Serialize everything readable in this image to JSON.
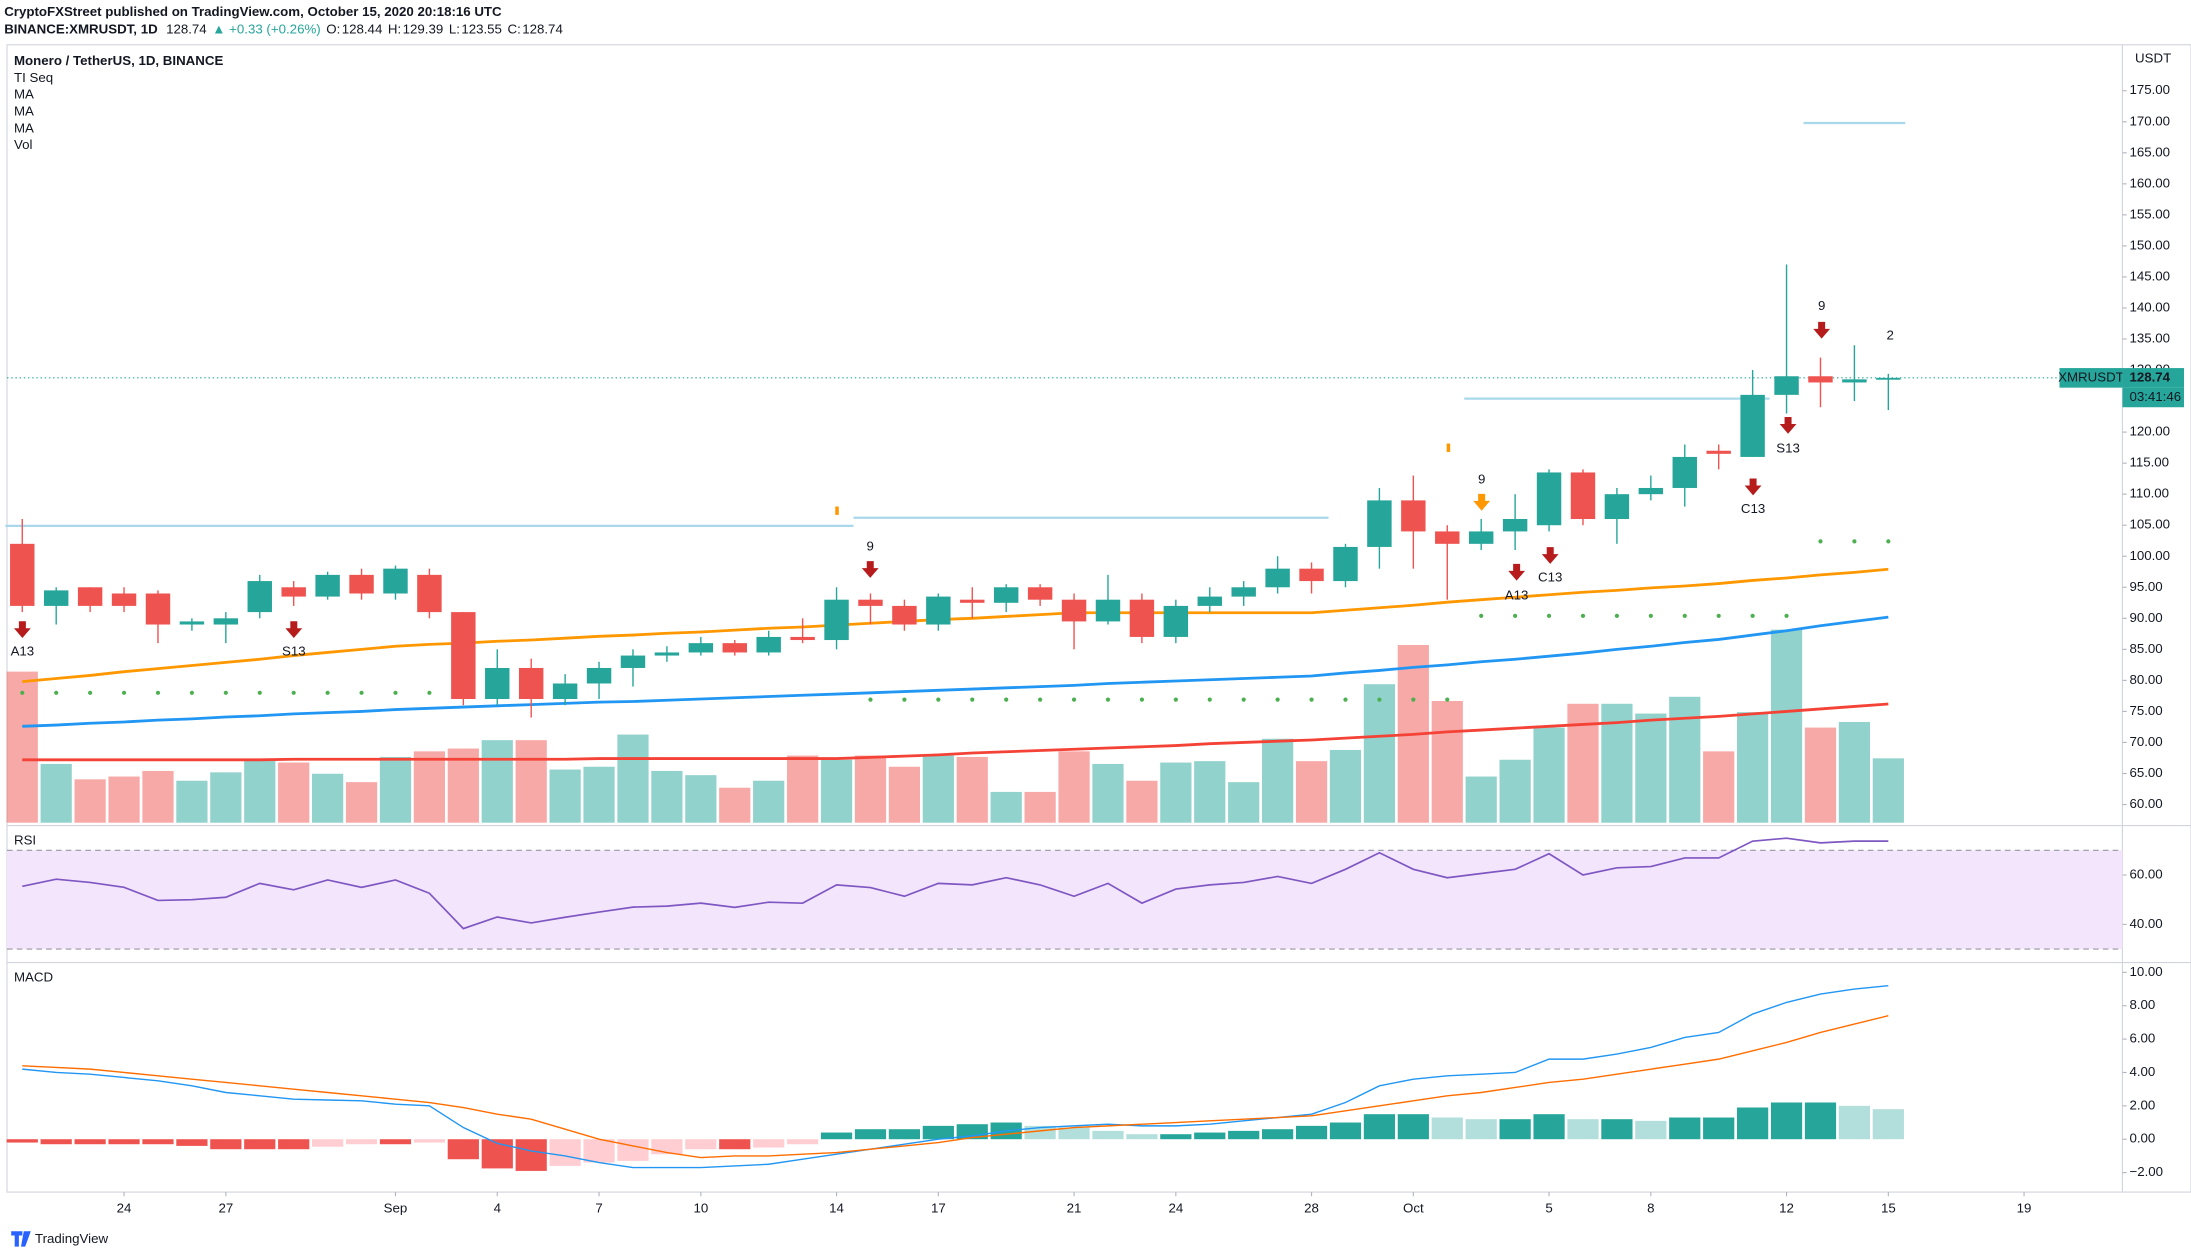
{
  "header": {
    "publisher": "CryptoFXStreet published on TradingView.com, October 15, 2020 20:18:16 UTC",
    "symbol": "BINANCE:XMRUSDT, 1D",
    "change": "▲ +0.33 (+0.26%)",
    "ohlc_labels": [
      "O:",
      "H:",
      "L:",
      "C:"
    ]
  },
  "footer": "TradingView",
  "chart_data": [
    {
      "type": "candlestick",
      "title": "Monero / TetherUS, 1D, BINANCE",
      "indicator": "TI Seq",
      "volume_name": "Vol",
      "currency": "USDT",
      "last_symbol": "XMRUSDT",
      "countdown": "03:41:46",
      "up_color": "#26a69a",
      "down_color": "#ef5350",
      "grid": false,
      "open": [
        102,
        92,
        95,
        94,
        94,
        89,
        89,
        91,
        95,
        93.5,
        97,
        94,
        97,
        91,
        77,
        82,
        77,
        79.5,
        82,
        84,
        84.5,
        86,
        84.5,
        87,
        86.5,
        93,
        92,
        89,
        93,
        92.5,
        95,
        93,
        89.5,
        93,
        87,
        92,
        93.5,
        95,
        98,
        96,
        101.5,
        109,
        104,
        102,
        104,
        105,
        113.5,
        106,
        110,
        111,
        117,
        116,
        126,
        129,
        128,
        128.44
      ],
      "high": [
        106,
        95,
        95,
        95,
        94.5,
        90,
        91,
        97,
        96,
        97.5,
        98,
        98.5,
        98,
        91,
        85,
        83.5,
        81,
        83,
        85,
        85.5,
        87,
        86.5,
        88,
        90,
        95,
        94,
        93,
        94,
        95,
        95.5,
        95.5,
        94,
        97,
        94,
        93,
        95,
        96,
        100,
        99,
        102,
        111,
        113,
        105,
        106,
        110,
        114,
        114,
        111,
        113,
        118,
        118,
        130,
        147,
        132,
        134,
        129.39
      ],
      "low": [
        91,
        89,
        91,
        91,
        86,
        88,
        86,
        90,
        92,
        93,
        93,
        93,
        90,
        76,
        76,
        74,
        76,
        77,
        79,
        83,
        84,
        84,
        84,
        86,
        85,
        89,
        88,
        88,
        90,
        91,
        92,
        85,
        89,
        86,
        86,
        91,
        92,
        94,
        94,
        95,
        98,
        98,
        93,
        101,
        101,
        104,
        105,
        102,
        109,
        108,
        114,
        116,
        123,
        124,
        125,
        123.55
      ],
      "close": [
        92,
        94.5,
        92,
        92,
        89,
        89.5,
        90,
        96,
        93.5,
        97,
        94,
        98,
        91,
        77,
        82,
        77,
        79.5,
        82,
        84,
        84.5,
        86,
        84.5,
        87,
        86.5,
        93,
        92,
        89,
        93.5,
        92.5,
        95,
        93,
        89.5,
        93,
        87,
        92,
        93.5,
        95,
        98,
        96,
        101.5,
        109,
        104,
        102,
        104,
        106,
        113.5,
        106,
        110,
        111,
        116,
        116.5,
        126,
        129,
        128,
        128.5,
        128.74
      ],
      "volume": [
        108,
        42,
        31,
        33,
        37,
        30,
        36,
        45,
        43,
        35,
        29,
        47,
        51,
        53,
        59,
        59,
        38,
        40,
        63,
        37,
        34,
        25,
        30,
        48,
        45,
        48,
        40,
        48,
        47,
        22,
        22,
        51,
        42,
        30,
        43,
        44,
        29,
        60,
        44,
        52,
        99,
        127,
        87,
        33,
        45,
        68,
        85,
        85,
        78,
        90,
        51,
        79,
        138,
        68,
        72,
        46
      ],
      "series": [
        {
          "name": "MA",
          "color": "#ff9800",
          "values": [
            79.8,
            80.3,
            80.8,
            81.4,
            81.9,
            82.4,
            82.9,
            83.4,
            84.0,
            84.5,
            85.0,
            85.5,
            85.8,
            86.0,
            86.3,
            86.5,
            86.8,
            87.1,
            87.3,
            87.6,
            87.8,
            88.1,
            88.4,
            88.6,
            88.9,
            89.2,
            89.5,
            89.8,
            90.0,
            90.3,
            90.6,
            90.9,
            90.9,
            90.9,
            90.9,
            90.9,
            90.9,
            90.9,
            90.9,
            91.3,
            91.7,
            92.1,
            92.6,
            93.0,
            93.4,
            93.8,
            94.2,
            94.5,
            94.9,
            95.2,
            95.6,
            96.1,
            96.5,
            97.0,
            97.4,
            97.9
          ]
        },
        {
          "name": "MA",
          "color": "#2196f3",
          "values": [
            72.6,
            72.8,
            73.1,
            73.3,
            73.6,
            73.8,
            74.1,
            74.3,
            74.6,
            74.8,
            75.0,
            75.3,
            75.5,
            75.7,
            75.9,
            76.1,
            76.3,
            76.5,
            76.6,
            76.8,
            77.0,
            77.2,
            77.4,
            77.6,
            77.8,
            78.0,
            78.2,
            78.4,
            78.6,
            78.8,
            79.0,
            79.2,
            79.5,
            79.7,
            79.9,
            80.1,
            80.3,
            80.5,
            80.7,
            81.2,
            81.6,
            82.1,
            82.5,
            83.0,
            83.4,
            83.9,
            84.4,
            85.0,
            85.5,
            86.1,
            86.6,
            87.3,
            88.0,
            88.8,
            89.5,
            90.2
          ]
        },
        {
          "name": "MA",
          "color": "#f44336",
          "values": [
            67.2,
            67.2,
            67.2,
            67.2,
            67.2,
            67.2,
            67.2,
            67.2,
            67.3,
            67.3,
            67.3,
            67.3,
            67.3,
            67.3,
            67.3,
            67.3,
            67.3,
            67.4,
            67.4,
            67.4,
            67.4,
            67.4,
            67.4,
            67.4,
            67.4,
            67.6,
            67.8,
            68.0,
            68.3,
            68.5,
            68.7,
            68.9,
            69.1,
            69.3,
            69.5,
            69.8,
            70.0,
            70.2,
            70.4,
            70.7,
            71.0,
            71.3,
            71.7,
            72.0,
            72.3,
            72.6,
            72.9,
            73.2,
            73.6,
            73.9,
            74.2,
            74.6,
            75.0,
            75.4,
            75.8,
            76.2
          ]
        }
      ],
      "levels": [
        {
          "value": 104.9,
          "from": 0,
          "to": 24,
          "style": "solid",
          "color": "#a8d8ea"
        },
        {
          "value": 106.2,
          "from": 25,
          "to": 38,
          "style": "solid",
          "color": "#a8d8ea"
        },
        {
          "value": 125.4,
          "from": 43,
          "to": 51,
          "style": "solid",
          "color": "#a8d8ea"
        },
        {
          "value": 169.8,
          "from": 53,
          "to": 55,
          "style": "solid",
          "color": "#a8d8ea"
        },
        {
          "value": 78.0,
          "from": 0,
          "to": 12,
          "style": "dots",
          "color": "#4caf50"
        },
        {
          "value": 76.9,
          "from": 25,
          "to": 42,
          "style": "dots",
          "color": "#4caf50"
        },
        {
          "value": 90.4,
          "from": 43,
          "to": 52,
          "style": "dots",
          "color": "#4caf50"
        },
        {
          "value": 102.4,
          "from": 53,
          "to": 55,
          "style": "dots",
          "color": "#4caf50"
        }
      ],
      "signals": [
        {
          "text": "A13",
          "color": "#2196f3"
        },
        {
          "text": "S13",
          "color": "#ff9800"
        },
        {
          "text": "9",
          "color": "#4caf50"
        },
        {
          "text": "9",
          "color": "#4caf50"
        },
        {
          "text": "A13",
          "color": "#2196f3"
        },
        {
          "text": "C13",
          "color": "#e040fb"
        },
        {
          "text": "C13",
          "color": "#e040fb"
        },
        {
          "text": "S13",
          "color": "#ff9800"
        },
        {
          "text": "9",
          "color": "#4caf50"
        },
        {
          "text": "2",
          "color": "#22c55e",
          "size": "large"
        }
      ],
      "xlim": [
        -0.45,
        61.9
      ],
      "xticks": [
        {
          "value": 3,
          "label": "24"
        },
        {
          "value": 6,
          "label": "27"
        },
        {
          "value": 11,
          "label": "Sep"
        },
        {
          "value": 14,
          "label": "4"
        },
        {
          "value": 17,
          "label": "7"
        },
        {
          "value": 20,
          "label": "10"
        },
        {
          "value": 24,
          "label": "14"
        },
        {
          "value": 27,
          "label": "17"
        },
        {
          "value": 31,
          "label": "21"
        },
        {
          "value": 34,
          "label": "24"
        },
        {
          "value": 38,
          "label": "28"
        },
        {
          "value": 41,
          "label": "Oct"
        },
        {
          "value": 45,
          "label": "5"
        },
        {
          "value": 48,
          "label": "8"
        },
        {
          "value": 52,
          "label": "12"
        },
        {
          "value": 55,
          "label": "15"
        },
        {
          "value": 59,
          "label": "19"
        }
      ],
      "ylim": [
        57.07,
        182.4
      ],
      "yticks": [
        {
          "value": 60,
          "label": "60.00"
        },
        {
          "value": 65,
          "label": "65.00"
        },
        {
          "value": 70,
          "label": "70.00"
        },
        {
          "value": 75,
          "label": "75.00"
        },
        {
          "value": 80,
          "label": "80.00"
        },
        {
          "value": 85,
          "label": "85.00"
        },
        {
          "value": 90,
          "label": "90.00"
        },
        {
          "value": 95,
          "label": "95.00"
        },
        {
          "value": 100,
          "label": "100.00"
        },
        {
          "value": 105,
          "label": "105.00"
        },
        {
          "value": 110,
          "label": "110.00"
        },
        {
          "value": 115,
          "label": "115.00"
        },
        {
          "value": 120,
          "label": "120.00"
        },
        {
          "value": 125,
          "label": "125.00"
        },
        {
          "value": 130,
          "label": "130.00"
        },
        {
          "value": 135,
          "label": "135.00"
        },
        {
          "value": 140,
          "label": "140.00"
        },
        {
          "value": 145,
          "label": "145.00"
        },
        {
          "value": 150,
          "label": "150.00"
        },
        {
          "value": 155,
          "label": "155.00"
        },
        {
          "value": 160,
          "label": "160.00"
        },
        {
          "value": 165,
          "label": "165.00"
        },
        {
          "value": 170,
          "label": "170.00"
        },
        {
          "value": 175,
          "label": "175.00"
        }
      ]
    },
    {
      "type": "line",
      "title": "RSI",
      "color": "#7e57c2",
      "band": [
        30,
        70
      ],
      "band_color": "#f3e5fc",
      "values": [
        55.4,
        58.3,
        57,
        55,
        49.7,
        50,
        51,
        56.6,
        54,
        58,
        55,
        58,
        52.6,
        38.3,
        43,
        40.6,
        42.9,
        45,
        47,
        47.4,
        48.6,
        46.9,
        49,
        48.6,
        56,
        54.9,
        51.4,
        56.6,
        56,
        58.9,
        56,
        51.4,
        56.6,
        48.6,
        54.3,
        56,
        57,
        59.4,
        56.6,
        62.3,
        69,
        62.3,
        58.9,
        60.6,
        62.3,
        68.6,
        60,
        62.9,
        63.4,
        66.9,
        66.9,
        73.7,
        74.9,
        73,
        73.7,
        73.7
      ],
      "ylim": [
        25.1,
        78.9
      ],
      "yticks": [
        {
          "value": 40,
          "label": "40.00"
        },
        {
          "value": 60,
          "label": "60.00"
        }
      ]
    },
    {
      "type": "macd",
      "title": "MACD",
      "macd_color": "#2196f3",
      "signal_color": "#ff6d00",
      "histogram_colors": [
        "#26a69a",
        "#b2dfdb",
        "#ef5350",
        "#ffcdd2"
      ],
      "macd": [
        4.2,
        4.0,
        3.9,
        3.7,
        3.5,
        3.2,
        2.8,
        2.6,
        2.4,
        2.35,
        2.3,
        2.1,
        2.0,
        0.7,
        -0.25,
        -0.7,
        -1.0,
        -1.4,
        -1.7,
        -1.7,
        -1.7,
        -1.6,
        -1.5,
        -1.2,
        -0.9,
        -0.6,
        -0.3,
        0.0,
        0.2,
        0.5,
        0.7,
        0.8,
        0.9,
        0.8,
        0.8,
        0.9,
        1.1,
        1.3,
        1.5,
        2.2,
        3.2,
        3.6,
        3.8,
        3.9,
        4.0,
        4.8,
        4.8,
        5.1,
        5.5,
        6.1,
        6.4,
        7.5,
        8.2,
        8.7,
        9.0,
        9.2
      ],
      "signal": [
        4.4,
        4.3,
        4.2,
        4.0,
        3.8,
        3.6,
        3.4,
        3.2,
        3.0,
        2.8,
        2.6,
        2.4,
        2.2,
        1.9,
        1.5,
        1.2,
        0.6,
        0.0,
        -0.4,
        -0.8,
        -1.1,
        -1.0,
        -1.0,
        -0.9,
        -0.8,
        -0.6,
        -0.4,
        -0.2,
        0.1,
        0.3,
        0.5,
        0.7,
        0.8,
        0.9,
        1.0,
        1.1,
        1.2,
        1.3,
        1.4,
        1.7,
        2.0,
        2.3,
        2.6,
        2.8,
        3.1,
        3.4,
        3.6,
        3.9,
        4.2,
        4.5,
        4.8,
        5.3,
        5.8,
        6.4,
        6.9,
        7.4
      ],
      "histogram": [
        -0.2,
        -0.3,
        -0.3,
        -0.3,
        -0.3,
        -0.4,
        -0.6,
        -0.6,
        -0.6,
        -0.45,
        -0.3,
        -0.3,
        -0.2,
        -1.2,
        -1.75,
        -1.9,
        -1.6,
        -1.4,
        -1.3,
        -0.9,
        -0.6,
        -0.6,
        -0.5,
        -0.3,
        0.4,
        0.6,
        0.6,
        0.8,
        0.9,
        1.0,
        0.8,
        0.7,
        0.5,
        0.3,
        0.3,
        0.4,
        0.5,
        0.6,
        0.8,
        1.0,
        1.5,
        1.5,
        1.3,
        1.2,
        1.2,
        1.5,
        1.2,
        1.2,
        1.1,
        1.3,
        1.3,
        1.9,
        2.2,
        2.2,
        2.0,
        1.8
      ],
      "ylim": [
        -3.0,
        10.5
      ],
      "yticks": [
        {
          "value": -2,
          "label": "−2.00"
        },
        {
          "value": 0,
          "label": "0.00"
        },
        {
          "value": 2,
          "label": "2.00"
        },
        {
          "value": 4,
          "label": "4.00"
        },
        {
          "value": 6,
          "label": "6.00"
        },
        {
          "value": 8,
          "label": "8.00"
        },
        {
          "value": 10,
          "label": "10.00"
        }
      ]
    }
  ]
}
